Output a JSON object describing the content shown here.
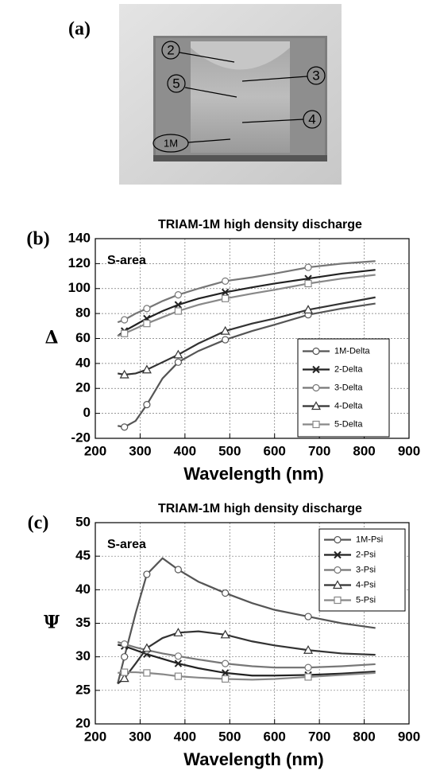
{
  "photo": {
    "panel": "(a)",
    "labels": [
      "2",
      "5",
      "3",
      "4",
      "1M"
    ]
  },
  "chart_data": [
    {
      "type": "line",
      "panel": "(b)",
      "title": "TRIAM-1M high density discharge",
      "annotation": "S-area",
      "xlabel": "Wavelength (nm)",
      "ylabel": "Δ",
      "x": [
        250,
        265,
        290,
        315,
        350,
        385,
        430,
        490,
        550,
        600,
        675,
        750,
        825
      ],
      "series": [
        {
          "name": "1M-Delta",
          "color": "#555555",
          "marker": "circle",
          "values": [
            -10,
            -11,
            -6,
            7,
            28,
            41,
            50,
            59,
            66,
            71,
            79,
            84,
            88
          ]
        },
        {
          "name": "2-Delta",
          "color": "#222222",
          "marker": "x",
          "values": [
            62,
            66,
            71,
            76,
            82,
            87,
            92,
            97,
            101,
            104,
            108,
            112,
            115
          ]
        },
        {
          "name": "3-Delta",
          "color": "#777777",
          "marker": "circle",
          "values": [
            73,
            75,
            80,
            84,
            90,
            95,
            100,
            106,
            109,
            112,
            117,
            120,
            122
          ]
        },
        {
          "name": "4-Delta",
          "color": "#333333",
          "marker": "triangle",
          "values": [
            32,
            31,
            32,
            35,
            41,
            47,
            56,
            66,
            72,
            76,
            83,
            88,
            93
          ]
        },
        {
          "name": "5-Delta",
          "color": "#888888",
          "marker": "square",
          "values": [
            62,
            64,
            68,
            72,
            77,
            82,
            87,
            92,
            96,
            99,
            104,
            108,
            111
          ]
        }
      ],
      "xlim": [
        200,
        900
      ],
      "ylim": [
        -20,
        140
      ],
      "xticks": [
        200,
        300,
        400,
        500,
        600,
        700,
        800,
        900
      ],
      "yticks": [
        -20,
        0,
        20,
        40,
        60,
        80,
        100,
        120,
        140
      ],
      "grid": true,
      "legend": "lower right"
    },
    {
      "type": "line",
      "panel": "(c)",
      "title": "TRIAM-1M high density discharge",
      "annotation": "S-area",
      "xlabel": "Wavelength (nm)",
      "ylabel": "Ψ",
      "x": [
        250,
        265,
        290,
        315,
        350,
        385,
        430,
        490,
        550,
        600,
        675,
        750,
        825
      ],
      "series": [
        {
          "name": "1M-Psi",
          "color": "#555555",
          "marker": "circle",
          "values": [
            26,
            30,
            36.5,
            42.3,
            44.7,
            43,
            41.2,
            39.5,
            38,
            37,
            36,
            35,
            34.3
          ]
        },
        {
          "name": "2-Psi",
          "color": "#222222",
          "marker": "x",
          "values": [
            31.8,
            31.6,
            31,
            30.4,
            29.7,
            29,
            28.3,
            27.6,
            27.2,
            27.2,
            27.3,
            27.5,
            27.8
          ]
        },
        {
          "name": "3-Psi",
          "color": "#777777",
          "marker": "circle",
          "values": [
            32.2,
            31.9,
            31.4,
            31,
            30.5,
            30.1,
            29.6,
            29,
            28.6,
            28.4,
            28.4,
            28.6,
            28.9
          ]
        },
        {
          "name": "4-Psi",
          "color": "#333333",
          "marker": "triangle",
          "values": [
            26,
            26.8,
            29,
            31.3,
            32.8,
            33.6,
            33.8,
            33.3,
            32.3,
            31.7,
            31,
            30.5,
            30.3
          ]
        },
        {
          "name": "5-Psi",
          "color": "#888888",
          "marker": "square",
          "values": [
            27.6,
            27.7,
            27.7,
            27.6,
            27.4,
            27.1,
            26.9,
            26.7,
            26.6,
            26.7,
            27,
            27.3,
            27.6
          ]
        }
      ],
      "xlim": [
        200,
        900
      ],
      "ylim": [
        20,
        50
      ],
      "xticks": [
        200,
        300,
        400,
        500,
        600,
        700,
        800,
        900
      ],
      "yticks": [
        20,
        25,
        30,
        35,
        40,
        45,
        50
      ],
      "grid": true,
      "legend": "upper right"
    }
  ]
}
